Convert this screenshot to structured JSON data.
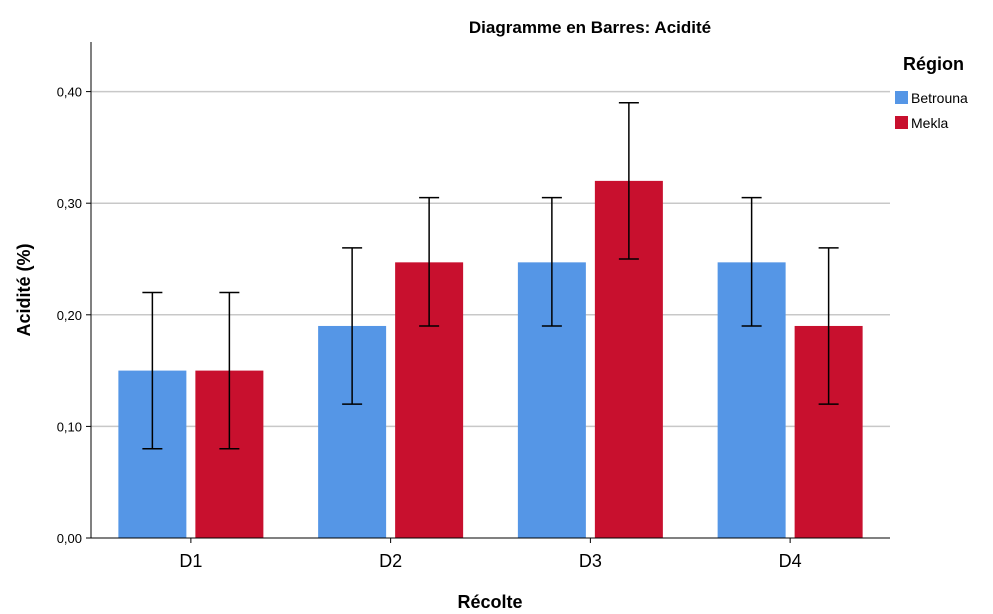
{
  "chart_data": {
    "type": "bar",
    "title": "Diagramme en Barres:  Acidité",
    "xlabel": "Récolte",
    "ylabel": "Acidité (%)",
    "categories": [
      "D1",
      "D2",
      "D3",
      "D4"
    ],
    "ylim": [
      0,
      0.44
    ],
    "yticks": [
      0,
      0.1,
      0.2,
      0.3,
      0.4
    ],
    "ytick_labels": [
      "0,00",
      "0,10",
      "0,20",
      "0,30",
      "0,40"
    ],
    "grid": true,
    "legend": {
      "title": "Région",
      "position": "top-right"
    },
    "series": [
      {
        "name": "Betrouna",
        "color": "#5596e6",
        "values": [
          0.15,
          0.19,
          0.247,
          0.247
        ],
        "error_low": [
          0.08,
          0.12,
          0.19,
          0.19
        ],
        "error_high": [
          0.22,
          0.26,
          0.305,
          0.305
        ]
      },
      {
        "name": "Mekla",
        "color": "#c8102e",
        "values": [
          0.15,
          0.247,
          0.32,
          0.19
        ],
        "error_low": [
          0.08,
          0.19,
          0.25,
          0.12
        ],
        "error_high": [
          0.22,
          0.305,
          0.39,
          0.26
        ]
      }
    ]
  }
}
